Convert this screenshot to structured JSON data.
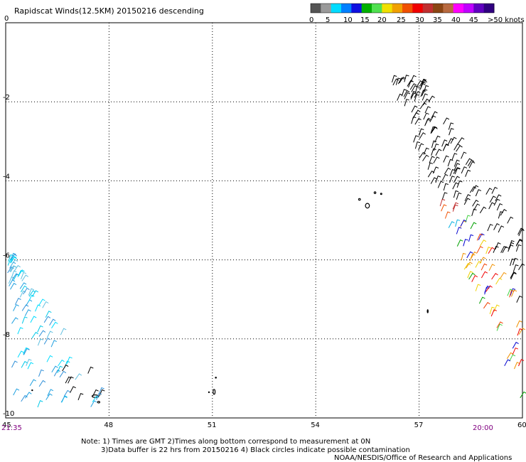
{
  "header": {
    "title": "Rapidscat Winds(12.5KM) 20150216 descending"
  },
  "legend": {
    "labels": [
      "0",
      "5",
      "10",
      "15",
      "20",
      "25",
      "30",
      "35",
      "40",
      "45",
      ">50 knots"
    ],
    "colors": [
      "#555555",
      "#9a9a9a",
      "#00dcff",
      "#0080ff",
      "#1010e0",
      "#00b000",
      "#50e050",
      "#f0e000",
      "#f0a000",
      "#f05000",
      "#f00000",
      "#c03030",
      "#8b4513",
      "#b86a40",
      "#ff00ff",
      "#c000ff",
      "#6000c0",
      "#300080"
    ]
  },
  "chart_data": {
    "type": "wind-barb map",
    "title": "Rapidscat Winds(12.5KM) 20150216 descending",
    "x_ticks": [
      "45",
      "48",
      "51",
      "54",
      "57",
      "60"
    ],
    "y_ticks": [
      "0",
      "-2",
      "-4",
      "-6",
      "-8",
      "-10"
    ],
    "xlim": [
      45,
      60
    ],
    "ylim": [
      -10,
      0
    ],
    "grid": true,
    "legend_placement": "top-right",
    "units": "knots",
    "swath_times": {
      "left": "21:35",
      "right": "20:00"
    }
  },
  "notes": {
    "line1": "Note: 1) Times are GMT 2)Times along bottom correspond to measurement at 0N",
    "line2": "3)Data buffer is 22 hrs from 20150216 4) Black circles indicate possible contamination",
    "line3": "NOAA/NESDIS/Office of Research and Applications"
  }
}
